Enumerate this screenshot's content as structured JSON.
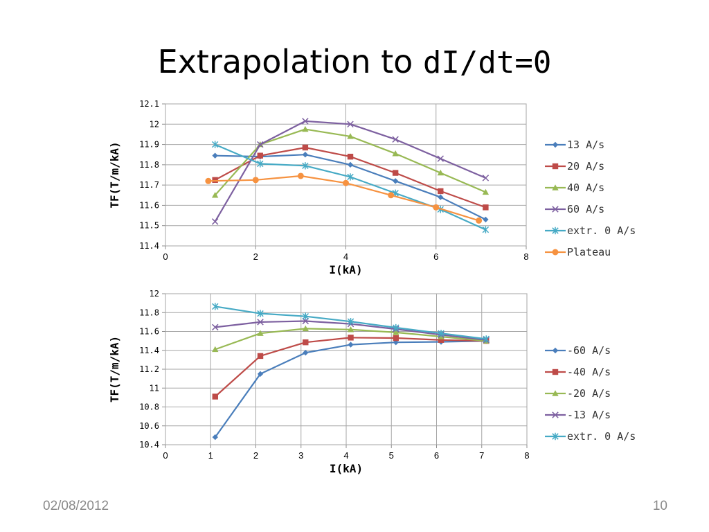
{
  "slide": {
    "title_text": "Extrapolation to ",
    "title_code": "dI/dt=0",
    "footer_date": "02/08/2012",
    "page_number": "10"
  },
  "chart_data": [
    {
      "type": "line",
      "xlabel": "I(kA)",
      "ylabel": "TF(T/m/kA)",
      "xlim": [
        0,
        8
      ],
      "ylim": [
        11.4,
        12.1
      ],
      "xticks": [
        0,
        2,
        4,
        6,
        8
      ],
      "yticks": [
        11.4,
        11.5,
        11.6,
        11.7,
        11.8,
        11.9,
        12,
        12.1
      ],
      "grid": "vertical and horizontal",
      "legend": "right",
      "series": [
        {
          "name": "13 A/s",
          "color": "#4a7ebb",
          "marker": "diamond",
          "x": [
            1.1,
            2.1,
            3.1,
            4.1,
            5.1,
            6.1,
            7.1
          ],
          "y": [
            11.845,
            11.84,
            11.85,
            11.8,
            11.72,
            11.64,
            11.53
          ]
        },
        {
          "name": "20 A/s",
          "color": "#be4b48",
          "marker": "square",
          "x": [
            1.1,
            2.1,
            3.1,
            4.1,
            5.1,
            6.1,
            7.1
          ],
          "y": [
            11.725,
            11.845,
            11.885,
            11.84,
            11.76,
            11.67,
            11.59
          ]
        },
        {
          "name": "40 A/s",
          "color": "#98b954",
          "marker": "triangle",
          "x": [
            1.1,
            2.1,
            3.1,
            4.1,
            5.1,
            6.1,
            7.1
          ],
          "y": [
            11.65,
            11.9,
            11.975,
            11.94,
            11.855,
            11.76,
            11.665
          ]
        },
        {
          "name": "60 A/s",
          "color": "#7d60a0",
          "marker": "x",
          "x": [
            1.1,
            2.1,
            3.1,
            4.1,
            5.1,
            6.1,
            7.1
          ],
          "y": [
            11.52,
            11.9,
            12.015,
            12.0,
            11.925,
            11.83,
            11.735
          ]
        },
        {
          "name": "extr. 0 A/s",
          "color": "#46aac5",
          "marker": "star",
          "x": [
            1.1,
            2.1,
            3.1,
            4.1,
            5.1,
            6.1,
            7.1
          ],
          "y": [
            11.9,
            11.805,
            11.795,
            11.74,
            11.66,
            11.58,
            11.48
          ]
        },
        {
          "name": "Plateau",
          "color": "#f69240",
          "marker": "circle",
          "x": [
            0.95,
            2.0,
            3.0,
            4.0,
            5.0,
            6.0,
            6.95
          ],
          "y": [
            11.72,
            11.725,
            11.745,
            11.71,
            11.65,
            11.59,
            11.525
          ]
        }
      ]
    },
    {
      "type": "line",
      "xlabel": "I(kA)",
      "ylabel": "TF(T/m/kA)",
      "xlim": [
        0,
        8
      ],
      "ylim": [
        10.4,
        12
      ],
      "xticks": [
        0,
        1,
        2,
        3,
        4,
        5,
        6,
        7,
        8
      ],
      "yticks": [
        10.4,
        10.6,
        10.8,
        11,
        11.2,
        11.4,
        11.6,
        11.8,
        12
      ],
      "grid": "vertical and horizontal",
      "legend": "right",
      "series": [
        {
          "name": "-60 A/s",
          "color": "#4a7ebb",
          "marker": "diamond",
          "x": [
            1.1,
            2.1,
            3.1,
            4.1,
            5.1,
            6.1,
            7.1
          ],
          "y": [
            10.48,
            11.15,
            11.375,
            11.46,
            11.485,
            11.49,
            11.5
          ]
        },
        {
          "name": "-40 A/s",
          "color": "#be4b48",
          "marker": "square",
          "x": [
            1.1,
            2.1,
            3.1,
            4.1,
            5.1,
            6.1,
            7.1
          ],
          "y": [
            10.91,
            11.34,
            11.485,
            11.535,
            11.53,
            11.51,
            11.5
          ]
        },
        {
          "name": "-20 A/s",
          "color": "#98b954",
          "marker": "triangle",
          "x": [
            1.1,
            2.1,
            3.1,
            4.1,
            5.1,
            6.1,
            7.1
          ],
          "y": [
            11.41,
            11.58,
            11.63,
            11.62,
            11.59,
            11.545,
            11.5
          ]
        },
        {
          "name": "-13 A/s",
          "color": "#7d60a0",
          "marker": "x",
          "x": [
            1.1,
            2.1,
            3.1,
            4.1,
            5.1,
            6.1,
            7.1
          ],
          "y": [
            11.645,
            11.7,
            11.71,
            11.68,
            11.625,
            11.565,
            11.51
          ]
        },
        {
          "name": "extr. 0 A/s",
          "color": "#46aac5",
          "marker": "star",
          "x": [
            1.1,
            2.1,
            3.1,
            4.1,
            5.1,
            6.1,
            7.1
          ],
          "y": [
            11.865,
            11.79,
            11.76,
            11.705,
            11.64,
            11.58,
            11.52
          ]
        }
      ]
    }
  ]
}
